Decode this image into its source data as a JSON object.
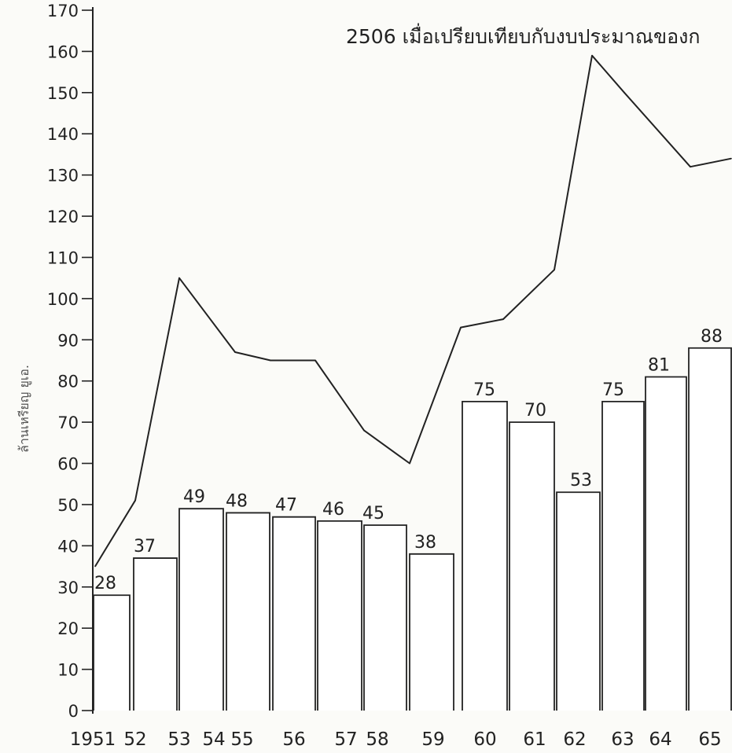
{
  "chart_data": {
    "type": "bar",
    "title": "2506 เมื่อเปรียบเทียบกับงบประมาณของก",
    "ylabel": "ล้านเหรียญ ยูเอ.",
    "xlabel": "",
    "ylim": [
      0,
      170
    ],
    "y_ticks": [
      "0",
      "10",
      "20",
      "30",
      "40",
      "50",
      "60",
      "70",
      "80",
      "90",
      "100",
      "110",
      "120",
      "130",
      "140",
      "150",
      "160",
      "170"
    ],
    "categories": [
      "1951",
      "52",
      "53",
      "54",
      "55",
      "56",
      "57",
      "58",
      "59",
      "60",
      "61",
      "62",
      "63",
      "64",
      "65"
    ],
    "grid": false,
    "legend": "none",
    "series": [
      {
        "type": "bar",
        "values": [
          28,
          37,
          49,
          48,
          47,
          46,
          45,
          38,
          null,
          75,
          70,
          53,
          75,
          81,
          88
        ],
        "data_labels": [
          "28",
          "37",
          "49",
          "48",
          "47",
          "46",
          "45",
          "38",
          "",
          "75",
          "70",
          "53",
          "75",
          "81",
          "88"
        ]
      },
      {
        "type": "line",
        "values": [
          35,
          51,
          105,
          87,
          85,
          85,
          68,
          60,
          93,
          95,
          107,
          159,
          150,
          132,
          134
        ]
      }
    ],
    "colors": {
      "ink": "#222222",
      "bar_fill": "#ffffff",
      "paper": "#fbfbf8"
    }
  }
}
